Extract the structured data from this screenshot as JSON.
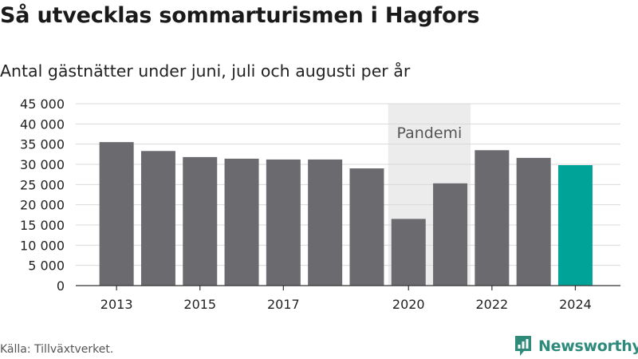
{
  "title": "Så utvecklas sommarturismen i Hagfors",
  "subtitle": "Antal gästnätter under juni, juli och augusti per år",
  "source": "Källa: Tillväxtverket.",
  "brand": {
    "name": "Newsworthy",
    "icon": "newsworthy-logo-icon",
    "color": "#2e8b7c"
  },
  "chart_data": {
    "type": "bar",
    "categories": [
      "2013",
      "2014",
      "2015",
      "2016",
      "2017",
      "2018",
      "2019",
      "2020",
      "2021",
      "2022",
      "2023",
      "2024"
    ],
    "values": [
      35500,
      33300,
      31800,
      31400,
      31200,
      31200,
      29000,
      16500,
      25300,
      33500,
      31600,
      29800
    ],
    "x_tick_labels": [
      "2013",
      "",
      "2015",
      "",
      "2017",
      "",
      "",
      "2020",
      "",
      "2022",
      "",
      "2024"
    ],
    "ylim": [
      0,
      45000
    ],
    "y_ticks": [
      0,
      5000,
      10000,
      15000,
      20000,
      25000,
      30000,
      35000,
      40000,
      45000
    ],
    "y_tick_labels": [
      "0",
      "5 000",
      "10 000",
      "15 000",
      "20 000",
      "25 000",
      "30 000",
      "35 000",
      "40 000",
      "45 000"
    ],
    "grid": true,
    "highlight": {
      "category": "2024",
      "color": "#00a398"
    },
    "bar_color": "#6b6a6f",
    "annotation": {
      "label": "Pandemi",
      "from": "2020",
      "to": "2021",
      "color": "#ececec"
    },
    "xlabel": "",
    "ylabel": ""
  }
}
